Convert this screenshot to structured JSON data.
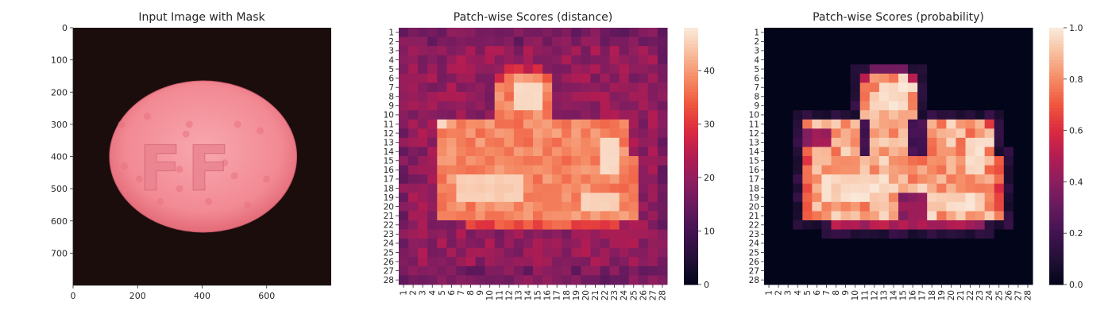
{
  "chart_data": [
    {
      "type": "image",
      "title": "Input Image with Mask",
      "xlim": [
        0,
        800
      ],
      "ylim": [
        800,
        0
      ],
      "x_ticks": [
        0,
        200,
        400,
        600
      ],
      "y_ticks": [
        0,
        100,
        200,
        300,
        400,
        500,
        600,
        700
      ],
      "object": {
        "shape": "ellipse",
        "center": [
          403,
          400
        ],
        "radii": [
          290,
          235
        ],
        "embossed_text": "FF"
      },
      "colors": {
        "background": "#1b0d0c",
        "object": "#f28a94",
        "object_edge": "#e36b78"
      }
    },
    {
      "type": "heatmap",
      "title": "Patch-wise Scores (distance)",
      "rows": 28,
      "cols": 28,
      "row_labels": [
        "1",
        "2",
        "3",
        "4",
        "5",
        "6",
        "7",
        "8",
        "9",
        "10",
        "11",
        "12",
        "13",
        "14",
        "15",
        "16",
        "17",
        "18",
        "19",
        "20",
        "21",
        "22",
        "23",
        "24",
        "25",
        "26",
        "27",
        "28"
      ],
      "col_labels": [
        "1",
        "2",
        "3",
        "4",
        "5",
        "6",
        "7",
        "8",
        "9",
        "10",
        "11",
        "12",
        "13",
        "14",
        "15",
        "16",
        "17",
        "18",
        "19",
        "20",
        "21",
        "22",
        "23",
        "24",
        "25",
        "26",
        "27",
        "28"
      ],
      "colorbar": {
        "range": [
          0,
          48
        ],
        "ticks": [
          "0",
          "10",
          "20",
          "30",
          "40"
        ],
        "tick_values": [
          0,
          10,
          20,
          30,
          40
        ]
      },
      "colormap": "rocket",
      "background_level": 20,
      "foreground_level": 38,
      "peak_level": 47
    },
    {
      "type": "heatmap",
      "title": "Patch-wise Scores (probability)",
      "rows": 28,
      "cols": 28,
      "row_labels": [
        "1",
        "2",
        "3",
        "4",
        "5",
        "6",
        "7",
        "8",
        "9",
        "10",
        "11",
        "12",
        "13",
        "14",
        "15",
        "16",
        "17",
        "18",
        "19",
        "20",
        "21",
        "22",
        "23",
        "24",
        "25",
        "26",
        "27",
        "28"
      ],
      "col_labels": [
        "1",
        "2",
        "3",
        "4",
        "5",
        "6",
        "7",
        "8",
        "9",
        "10",
        "11",
        "12",
        "13",
        "14",
        "15",
        "16",
        "17",
        "18",
        "19",
        "20",
        "21",
        "22",
        "23",
        "24",
        "25",
        "26",
        "27",
        "28"
      ],
      "colorbar": {
        "range": [
          0,
          1
        ],
        "ticks": [
          "0.0",
          "0.2",
          "0.4",
          "0.6",
          "0.8",
          "1.0"
        ],
        "tick_values": [
          0,
          0.2,
          0.4,
          0.6,
          0.8,
          1.0
        ]
      },
      "colormap": "rocket",
      "background_level": 0.0,
      "foreground_level": 0.85,
      "peak_level": 1.0
    }
  ]
}
